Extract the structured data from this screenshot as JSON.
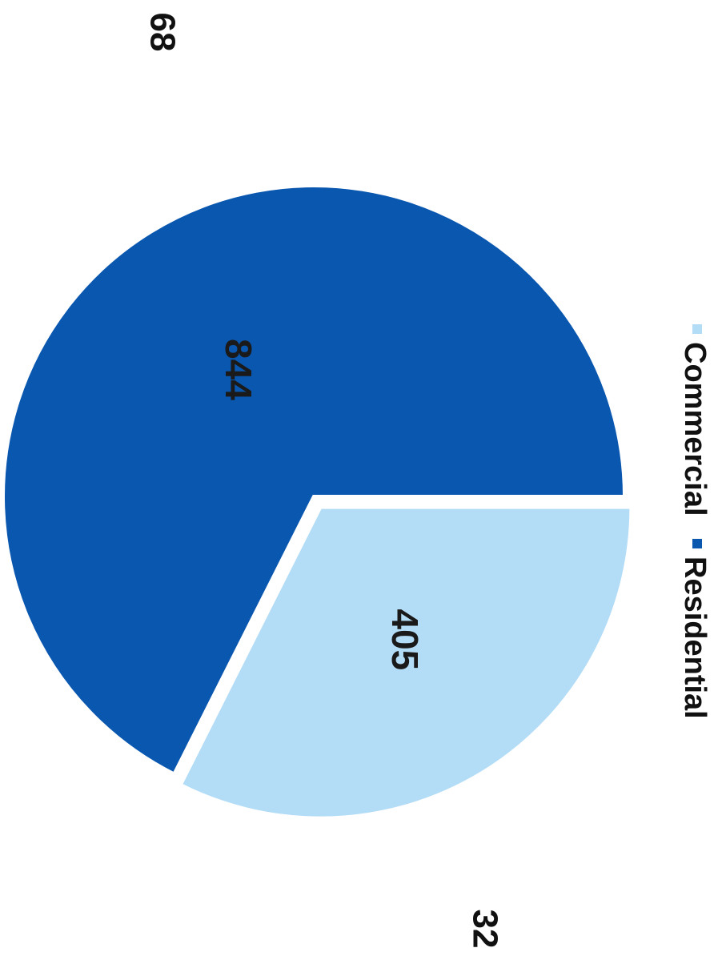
{
  "chart_data": {
    "type": "pie",
    "slices": [
      {
        "label": "Commercial",
        "value": 405,
        "color": "#b3dcf7"
      },
      {
        "label": "Residential",
        "value": 844,
        "color": "#0a57b0"
      }
    ],
    "legend": {
      "placement": "right",
      "items": [
        "Commercial",
        "Residential"
      ]
    },
    "corner_labels": {
      "top": "68",
      "bottom": "32"
    }
  }
}
